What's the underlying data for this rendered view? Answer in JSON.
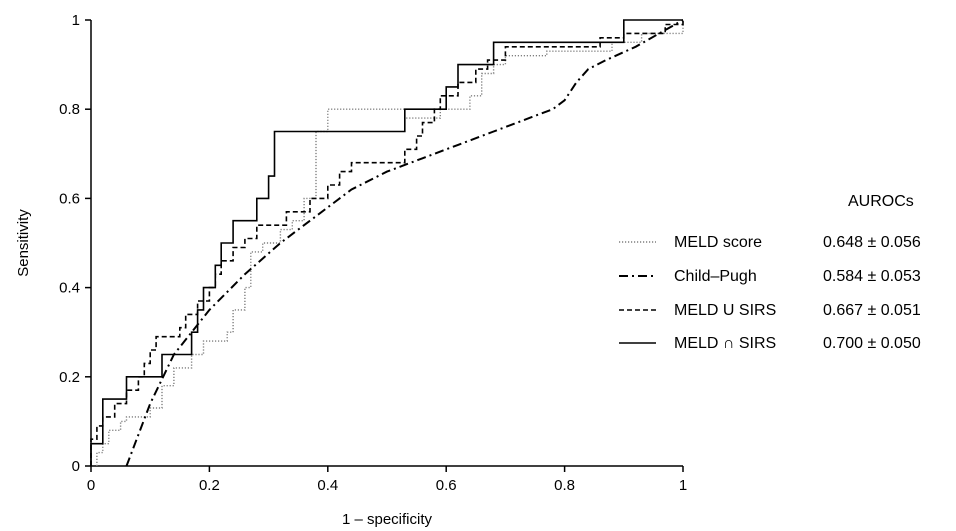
{
  "chart_data": {
    "type": "line",
    "xlabel": "1 – specificity",
    "ylabel": "Sensitivity",
    "xlim": [
      0,
      1
    ],
    "ylim": [
      0,
      1
    ],
    "x_ticks": [
      "0",
      "0.2",
      "0.4",
      "0.6",
      "0.8",
      "1"
    ],
    "y_ticks": [
      "0",
      "0.2",
      "0.4",
      "0.6",
      "0.8",
      "1"
    ],
    "grid": false,
    "legend": {
      "placement": "right",
      "title": "AUROCs",
      "entries": [
        {
          "name": "MELD score",
          "value": "0.648 ± 0.056"
        },
        {
          "name": "Child–Pugh",
          "value": "0.584 ± 0.053"
        },
        {
          "name": "MELD U SIRS",
          "value": "0.667 ± 0.051"
        },
        {
          "name": "MELD ∩ SIRS",
          "value": "0.700 ± 0.050"
        }
      ]
    },
    "series": [
      {
        "name": "MELD score",
        "style": "dotted",
        "color": "#7f7f7f",
        "points": [
          [
            0.01,
            0
          ],
          [
            0.01,
            0.03
          ],
          [
            0.02,
            0.03
          ],
          [
            0.02,
            0.05
          ],
          [
            0.03,
            0.05
          ],
          [
            0.03,
            0.08
          ],
          [
            0.05,
            0.08
          ],
          [
            0.05,
            0.1
          ],
          [
            0.06,
            0.1
          ],
          [
            0.06,
            0.11
          ],
          [
            0.1,
            0.11
          ],
          [
            0.1,
            0.13
          ],
          [
            0.12,
            0.13
          ],
          [
            0.12,
            0.18
          ],
          [
            0.14,
            0.18
          ],
          [
            0.14,
            0.22
          ],
          [
            0.17,
            0.22
          ],
          [
            0.17,
            0.25
          ],
          [
            0.19,
            0.25
          ],
          [
            0.19,
            0.28
          ],
          [
            0.23,
            0.28
          ],
          [
            0.23,
            0.3
          ],
          [
            0.24,
            0.3
          ],
          [
            0.24,
            0.35
          ],
          [
            0.26,
            0.35
          ],
          [
            0.26,
            0.4
          ],
          [
            0.27,
            0.4
          ],
          [
            0.27,
            0.48
          ],
          [
            0.29,
            0.48
          ],
          [
            0.29,
            0.5
          ],
          [
            0.32,
            0.5
          ],
          [
            0.32,
            0.53
          ],
          [
            0.34,
            0.53
          ],
          [
            0.34,
            0.55
          ],
          [
            0.36,
            0.55
          ],
          [
            0.36,
            0.6
          ],
          [
            0.38,
            0.6
          ],
          [
            0.38,
            0.75
          ],
          [
            0.4,
            0.75
          ],
          [
            0.4,
            0.8
          ],
          [
            0.53,
            0.8
          ],
          [
            0.53,
            0.78
          ],
          [
            0.59,
            0.78
          ],
          [
            0.59,
            0.8
          ],
          [
            0.64,
            0.8
          ],
          [
            0.64,
            0.83
          ],
          [
            0.66,
            0.83
          ],
          [
            0.66,
            0.88
          ],
          [
            0.68,
            0.88
          ],
          [
            0.68,
            0.9
          ],
          [
            0.7,
            0.9
          ],
          [
            0.7,
            0.92
          ],
          [
            0.77,
            0.92
          ],
          [
            0.77,
            0.93
          ],
          [
            0.88,
            0.93
          ],
          [
            0.88,
            0.95
          ],
          [
            0.93,
            0.95
          ],
          [
            0.93,
            0.97
          ],
          [
            1,
            0.97
          ],
          [
            1,
            1
          ]
        ]
      },
      {
        "name": "Child–Pugh",
        "style": "dash-dot",
        "color": "#000000",
        "points": [
          [
            0.06,
            0
          ],
          [
            0.1,
            0.14
          ],
          [
            0.14,
            0.25
          ],
          [
            0.2,
            0.35
          ],
          [
            0.26,
            0.43
          ],
          [
            0.32,
            0.5
          ],
          [
            0.38,
            0.56
          ],
          [
            0.44,
            0.62
          ],
          [
            0.5,
            0.66
          ],
          [
            0.56,
            0.69
          ],
          [
            0.62,
            0.72
          ],
          [
            0.68,
            0.75
          ],
          [
            0.74,
            0.78
          ],
          [
            0.78,
            0.8
          ],
          [
            0.8,
            0.82
          ],
          [
            0.82,
            0.86
          ],
          [
            0.84,
            0.89
          ],
          [
            0.87,
            0.91
          ],
          [
            0.92,
            0.94
          ],
          [
            0.96,
            0.97
          ],
          [
            1,
            1
          ]
        ]
      },
      {
        "name": "MELD U SIRS",
        "style": "dashed",
        "color": "#000000",
        "points": [
          [
            0,
            0
          ],
          [
            0,
            0.06
          ],
          [
            0.01,
            0.06
          ],
          [
            0.01,
            0.09
          ],
          [
            0.02,
            0.09
          ],
          [
            0.02,
            0.11
          ],
          [
            0.04,
            0.11
          ],
          [
            0.04,
            0.14
          ],
          [
            0.06,
            0.14
          ],
          [
            0.06,
            0.17
          ],
          [
            0.08,
            0.17
          ],
          [
            0.08,
            0.2
          ],
          [
            0.09,
            0.2
          ],
          [
            0.09,
            0.23
          ],
          [
            0.1,
            0.23
          ],
          [
            0.1,
            0.26
          ],
          [
            0.11,
            0.26
          ],
          [
            0.11,
            0.29
          ],
          [
            0.15,
            0.29
          ],
          [
            0.15,
            0.31
          ],
          [
            0.16,
            0.31
          ],
          [
            0.16,
            0.34
          ],
          [
            0.18,
            0.34
          ],
          [
            0.18,
            0.37
          ],
          [
            0.2,
            0.37
          ],
          [
            0.2,
            0.4
          ],
          [
            0.21,
            0.4
          ],
          [
            0.21,
            0.43
          ],
          [
            0.22,
            0.43
          ],
          [
            0.22,
            0.46
          ],
          [
            0.24,
            0.46
          ],
          [
            0.24,
            0.49
          ],
          [
            0.26,
            0.49
          ],
          [
            0.26,
            0.51
          ],
          [
            0.28,
            0.51
          ],
          [
            0.28,
            0.54
          ],
          [
            0.33,
            0.54
          ],
          [
            0.33,
            0.57
          ],
          [
            0.37,
            0.57
          ],
          [
            0.37,
            0.6
          ],
          [
            0.4,
            0.6
          ],
          [
            0.4,
            0.63
          ],
          [
            0.42,
            0.63
          ],
          [
            0.42,
            0.66
          ],
          [
            0.44,
            0.66
          ],
          [
            0.44,
            0.68
          ],
          [
            0.53,
            0.68
          ],
          [
            0.53,
            0.71
          ],
          [
            0.55,
            0.71
          ],
          [
            0.55,
            0.74
          ],
          [
            0.56,
            0.74
          ],
          [
            0.56,
            0.77
          ],
          [
            0.58,
            0.77
          ],
          [
            0.58,
            0.8
          ],
          [
            0.59,
            0.8
          ],
          [
            0.59,
            0.83
          ],
          [
            0.62,
            0.83
          ],
          [
            0.62,
            0.86
          ],
          [
            0.65,
            0.86
          ],
          [
            0.65,
            0.89
          ],
          [
            0.67,
            0.89
          ],
          [
            0.67,
            0.91
          ],
          [
            0.7,
            0.91
          ],
          [
            0.7,
            0.94
          ],
          [
            0.86,
            0.94
          ],
          [
            0.86,
            0.96
          ],
          [
            0.9,
            0.96
          ],
          [
            0.9,
            0.97
          ],
          [
            0.97,
            0.97
          ],
          [
            0.97,
            0.99
          ],
          [
            1,
            0.99
          ],
          [
            1,
            1
          ]
        ]
      },
      {
        "name": "MELD ∩ SIRS",
        "style": "solid",
        "color": "#000000",
        "points": [
          [
            0,
            0
          ],
          [
            0,
            0.05
          ],
          [
            0.02,
            0.05
          ],
          [
            0.02,
            0.15
          ],
          [
            0.06,
            0.15
          ],
          [
            0.06,
            0.2
          ],
          [
            0.12,
            0.2
          ],
          [
            0.12,
            0.25
          ],
          [
            0.17,
            0.25
          ],
          [
            0.17,
            0.3
          ],
          [
            0.18,
            0.3
          ],
          [
            0.18,
            0.35
          ],
          [
            0.19,
            0.35
          ],
          [
            0.19,
            0.4
          ],
          [
            0.21,
            0.4
          ],
          [
            0.21,
            0.45
          ],
          [
            0.22,
            0.45
          ],
          [
            0.22,
            0.5
          ],
          [
            0.24,
            0.5
          ],
          [
            0.24,
            0.55
          ],
          [
            0.28,
            0.55
          ],
          [
            0.28,
            0.6
          ],
          [
            0.3,
            0.6
          ],
          [
            0.3,
            0.65
          ],
          [
            0.31,
            0.65
          ],
          [
            0.31,
            0.75
          ],
          [
            0.53,
            0.75
          ],
          [
            0.53,
            0.8
          ],
          [
            0.6,
            0.8
          ],
          [
            0.6,
            0.85
          ],
          [
            0.62,
            0.85
          ],
          [
            0.62,
            0.9
          ],
          [
            0.68,
            0.9
          ],
          [
            0.68,
            0.95
          ],
          [
            0.9,
            0.95
          ],
          [
            0.9,
            1
          ],
          [
            1,
            1
          ]
        ]
      }
    ]
  }
}
